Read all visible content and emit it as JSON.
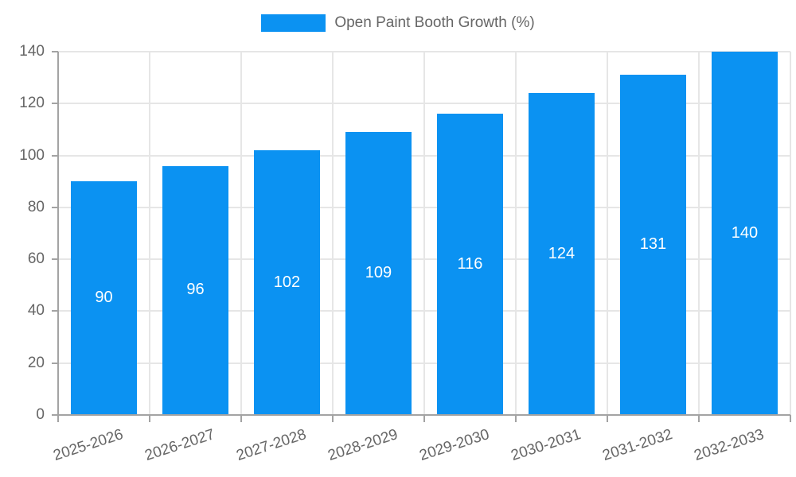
{
  "legend": {
    "label": "Open Paint Booth Growth (%)"
  },
  "colors": {
    "bar": "#0b92f2",
    "bar_label": "#ffffff",
    "axis_text": "#666666",
    "grid": "#e6e6e6",
    "axis_line": "#a3a3a3",
    "background": "#ffffff"
  },
  "chart_data": {
    "type": "bar",
    "title": "Open Paint Booth Growth (%)",
    "categories": [
      "2025-2026",
      "2026-2027",
      "2027-2028",
      "2028-2029",
      "2029-2030",
      "2030-2031",
      "2031-2032",
      "2032-2033"
    ],
    "values": [
      90,
      96,
      102,
      109,
      116,
      124,
      131,
      140
    ],
    "xlabel": "",
    "ylabel": "",
    "ylim": [
      0,
      140
    ],
    "yticks": [
      0,
      20,
      40,
      60,
      80,
      100,
      120,
      140
    ],
    "grid": true,
    "legend_position": "top",
    "value_labels": "inside-center",
    "x_label_rotation_deg": -18,
    "bar_width_fraction": 0.73
  }
}
